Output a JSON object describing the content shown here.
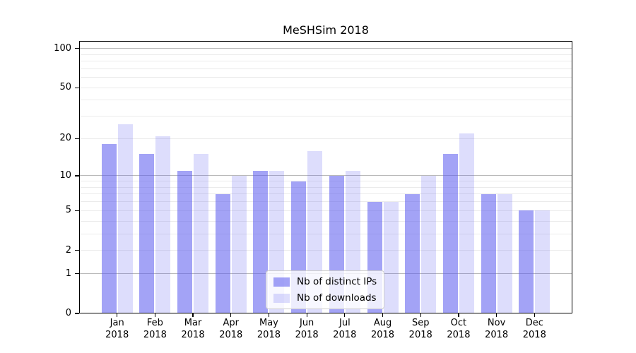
{
  "chart_data": {
    "type": "bar",
    "title": "MeSHSim 2018",
    "categories": [
      "Jan",
      "Feb",
      "Mar",
      "Apr",
      "May",
      "Jun",
      "Jul",
      "Aug",
      "Sep",
      "Oct",
      "Nov",
      "Dec"
    ],
    "xtick_year": "2018",
    "series": [
      {
        "name": "Nb of distinct IPs",
        "key": "distinct-ips",
        "color": "rgba(93,93,239,0.57)",
        "values": [
          18,
          15,
          11,
          7,
          11,
          9,
          10,
          6,
          7,
          15,
          7,
          5
        ]
      },
      {
        "name": "Nb of downloads",
        "key": "downloads",
        "color": "rgba(93,93,239,0.21)",
        "values": [
          26,
          21,
          15,
          10,
          11,
          16,
          11,
          6,
          10,
          22,
          7,
          5
        ]
      }
    ],
    "xlabel": "",
    "ylabel": "",
    "yscale": "log1p",
    "ylim": [
      0,
      114
    ],
    "yticks": [
      100,
      50,
      20,
      10,
      5,
      2,
      1,
      0
    ],
    "major_gridlines": [
      1,
      10,
      100
    ],
    "minor_gridlines": [
      2,
      3,
      4,
      5,
      6,
      7,
      8,
      9,
      20,
      30,
      40,
      50,
      60,
      70,
      80,
      90
    ],
    "grid": true,
    "legend_position": "lower center",
    "colors": {
      "bar_distinct_ips": "#a2a2f6",
      "bar_downloads": "#ddddfa",
      "grid_major": "#b9b9b9",
      "grid_minor": "#ebebeb",
      "axis": "#000000",
      "background": "#ffffff"
    }
  }
}
